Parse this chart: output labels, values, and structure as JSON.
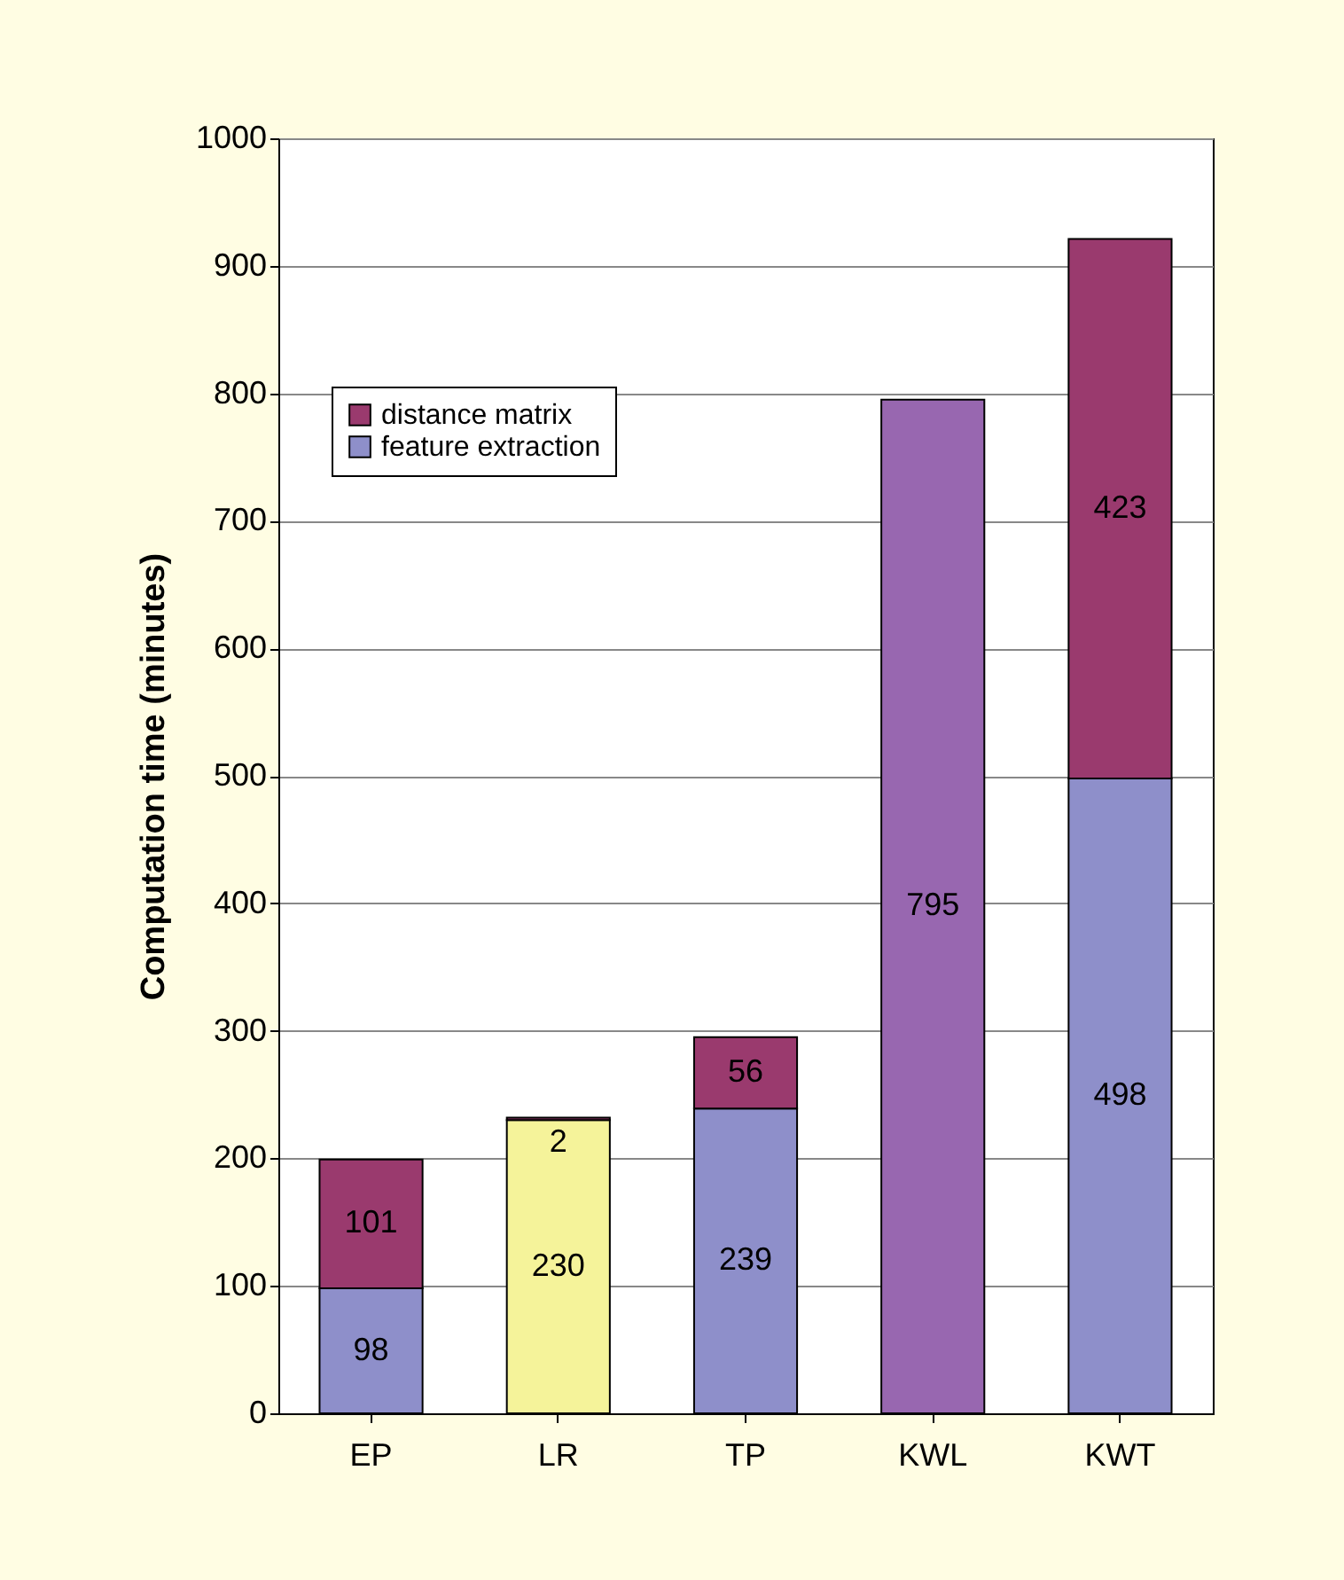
{
  "chart_data": {
    "type": "bar",
    "stacked": true,
    "ylabel": "Computation time (minutes)",
    "categories": [
      "EP",
      "LR",
      "TP",
      "KWL",
      "KWT"
    ],
    "series": [
      {
        "name": "feature extraction",
        "color": "#8e8fca",
        "colors": [
          "#8e8fca",
          "#f5f39a",
          "#8e8fca",
          "#9867b0",
          "#8e8fca"
        ],
        "values": [
          98,
          230,
          239,
          795,
          498
        ]
      },
      {
        "name": "distance matrix",
        "color": "#9a3a6e",
        "values": [
          101,
          2,
          56,
          null,
          423
        ]
      }
    ],
    "ylim": [
      0,
      1000
    ],
    "yticks": [
      0,
      100,
      200,
      300,
      400,
      500,
      600,
      700,
      800,
      900,
      1000
    ],
    "grid": "y",
    "legend": "top left",
    "data_labels": true
  }
}
